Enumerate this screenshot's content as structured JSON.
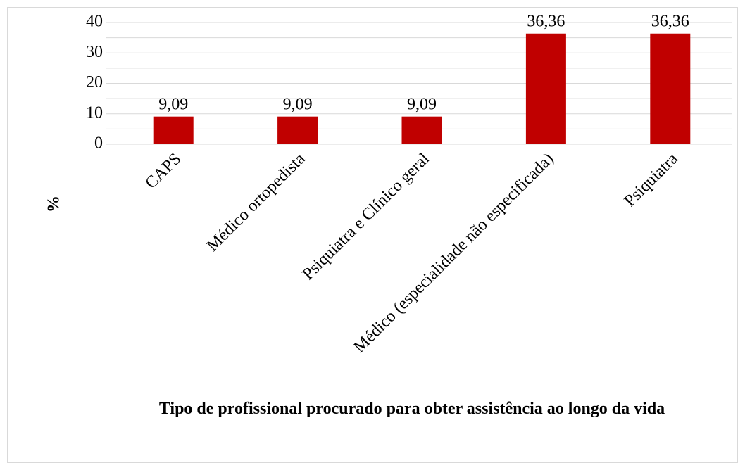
{
  "chart_data": {
    "type": "bar",
    "title": "Tipo de profissional procurado para obter assistência ao longo da vida",
    "y_label": "%",
    "categories": [
      "CAPS",
      "Médico ortopedista",
      "Psiquiatra e Clínico geral",
      "Médico (especialidade não especificada)",
      "Psiquiatra"
    ],
    "values": [
      9.09,
      9.09,
      9.09,
      36.36,
      36.36
    ],
    "value_labels": [
      "9,09",
      "9,09",
      "9,09",
      "36,36",
      "36,36"
    ],
    "color": "#c00000",
    "ylim": [
      0,
      40
    ],
    "yticks": [
      0,
      10,
      20,
      30,
      40
    ],
    "minor_yticks": [
      5,
      15,
      25,
      35
    ],
    "grid": true
  }
}
